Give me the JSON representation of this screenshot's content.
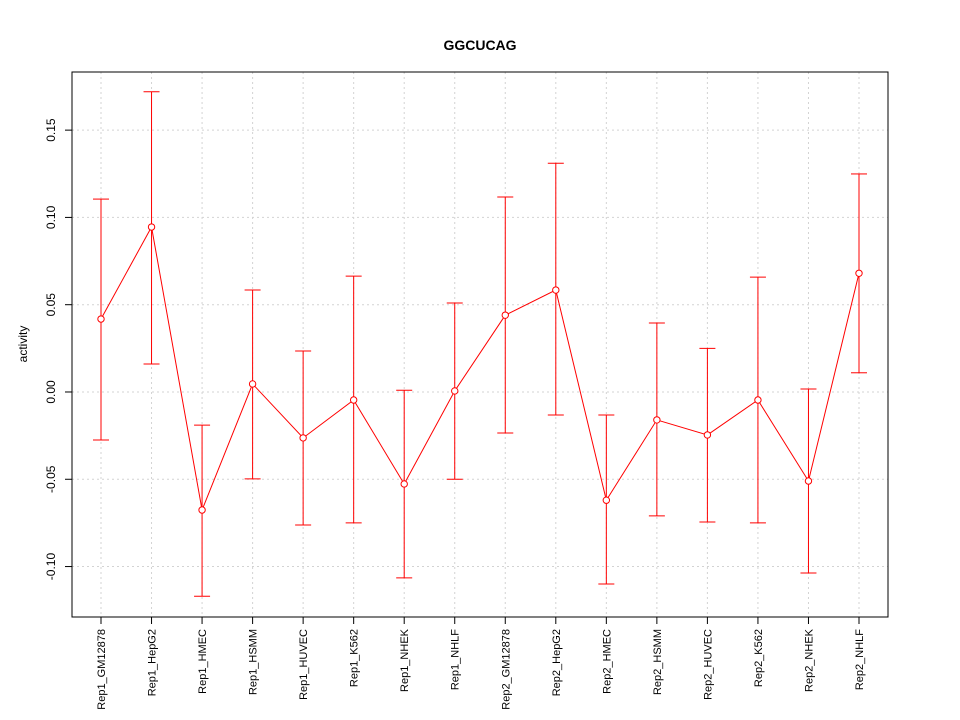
{
  "chart_data": {
    "type": "line",
    "title": "GGCUCAG",
    "xlabel": "",
    "ylabel": "activity",
    "ylim": [
      -0.1289,
      0.1833
    ],
    "yticks": [
      -0.1,
      -0.05,
      0.0,
      0.05,
      0.1,
      0.15
    ],
    "ytick_labels": [
      "-0.10",
      "-0.05",
      "0.00",
      "0.05",
      "0.10",
      "0.15"
    ],
    "grid": true,
    "line_color": "#ff0000",
    "categories": [
      "Rep1_GM12878",
      "Rep1_HepG2",
      "Rep1_HMEC",
      "Rep1_HSMM",
      "Rep1_HUVEC",
      "Rep1_K562",
      "Rep1_NHEK",
      "Rep1_NHLF",
      "Rep2_GM12878",
      "Rep2_HepG2",
      "Rep2_HMEC",
      "Rep2_HSMM",
      "Rep2_HUVEC",
      "Rep2_K562",
      "Rep2_NHEK",
      "Rep2_NHLF"
    ],
    "values": [
      0.0418,
      0.0945,
      -0.0676,
      0.0046,
      -0.0263,
      -0.0046,
      -0.0527,
      0.0006,
      0.044,
      0.0584,
      -0.062,
      -0.016,
      -0.0246,
      -0.0046,
      -0.051,
      0.068
    ],
    "upper": [
      0.1105,
      0.172,
      -0.019,
      0.0584,
      0.0235,
      0.0664,
      0.001,
      0.051,
      0.1117,
      0.131,
      -0.0132,
      0.0395,
      0.025,
      0.0658,
      0.0017,
      0.1249
    ],
    "lower": [
      -0.0275,
      0.016,
      -0.117,
      -0.0498,
      -0.0762,
      -0.075,
      -0.1065,
      -0.05,
      -0.0235,
      -0.0132,
      -0.11,
      -0.071,
      -0.0745,
      -0.075,
      -0.1037,
      0.011
    ]
  }
}
